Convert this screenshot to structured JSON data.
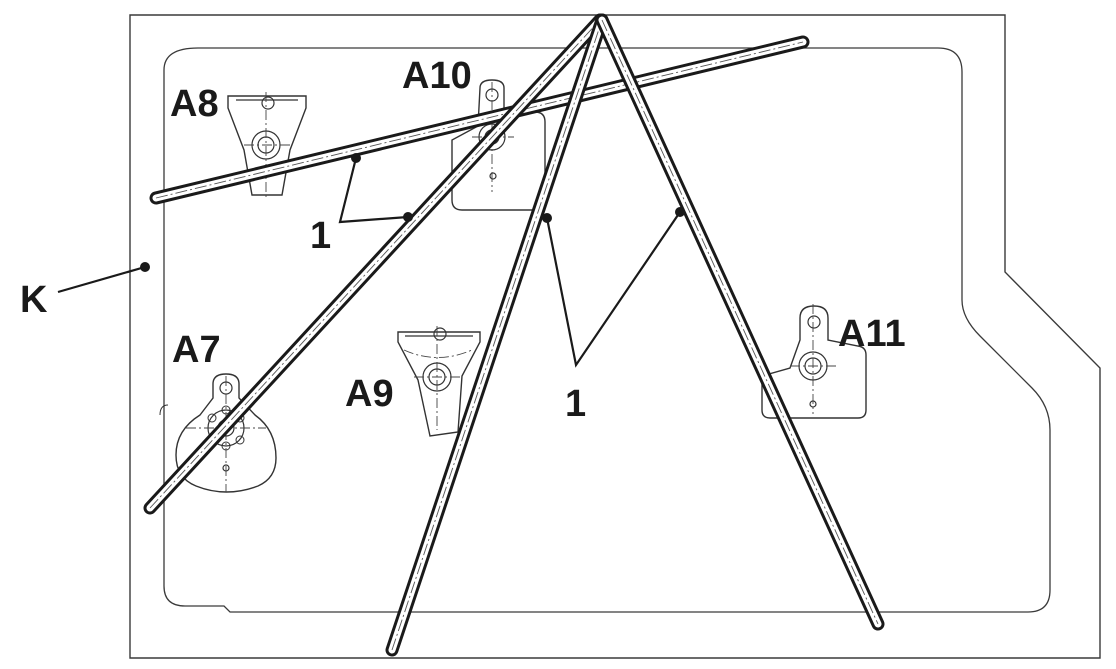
{
  "labels": {
    "k": "K",
    "a7": "A7",
    "a8": "A8",
    "a9": "A9",
    "a10": "A10",
    "a11": "A11",
    "part_left": "1",
    "part_right": "1"
  }
}
